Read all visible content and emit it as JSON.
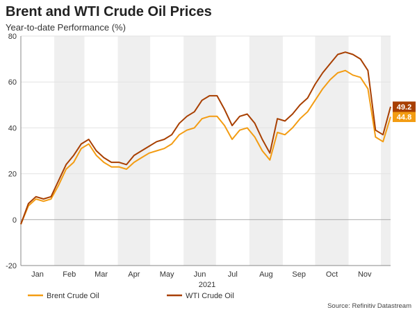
{
  "chart_data": {
    "type": "line",
    "title": "Brent and WTI Crude Oil Prices",
    "subtitle": "Year-to-date Performance (%)",
    "xlabel": "2021",
    "ylabel": "",
    "ylim": [
      -20,
      80
    ],
    "yticks": [
      "-20",
      "0",
      "20",
      "40",
      "60",
      "80"
    ],
    "categories": [
      "Jan",
      "Feb",
      "Mar",
      "Apr",
      "May",
      "Jun",
      "Jul",
      "Aug",
      "Sep",
      "Oct",
      "Nov"
    ],
    "x": [
      "2021-01-01",
      "2021-01-08",
      "2021-01-15",
      "2021-01-22",
      "2021-01-29",
      "2021-02-05",
      "2021-02-12",
      "2021-02-19",
      "2021-02-26",
      "2021-03-05",
      "2021-03-12",
      "2021-03-19",
      "2021-03-26",
      "2021-04-02",
      "2021-04-09",
      "2021-04-16",
      "2021-04-23",
      "2021-04-30",
      "2021-05-07",
      "2021-05-14",
      "2021-05-21",
      "2021-05-28",
      "2021-06-04",
      "2021-06-11",
      "2021-06-18",
      "2021-06-25",
      "2021-07-02",
      "2021-07-09",
      "2021-07-16",
      "2021-07-23",
      "2021-07-30",
      "2021-08-06",
      "2021-08-13",
      "2021-08-20",
      "2021-08-27",
      "2021-09-03",
      "2021-09-10",
      "2021-09-17",
      "2021-09-24",
      "2021-10-01",
      "2021-10-08",
      "2021-10-15",
      "2021-10-22",
      "2021-10-29",
      "2021-11-05",
      "2021-11-12",
      "2021-11-19",
      "2021-11-26",
      "2021-12-03",
      "2021-12-10"
    ],
    "series": [
      {
        "name": "Brent Crude Oil",
        "color": "#f39c12",
        "end_label": "44.8",
        "values": [
          -2,
          6,
          9,
          8,
          9,
          15,
          22,
          25,
          31,
          33,
          28,
          25,
          23,
          23,
          22,
          25,
          27,
          29,
          30,
          31,
          33,
          37,
          39,
          40,
          44,
          45,
          45,
          41,
          35,
          39,
          40,
          36,
          30,
          26,
          38,
          37,
          40,
          44,
          47,
          52,
          57,
          61,
          64,
          65,
          63,
          62,
          57,
          36,
          34,
          44.8
        ]
      },
      {
        "name": "WTI Crude Oil",
        "color": "#a83f00",
        "end_label": "49.2",
        "values": [
          -2,
          7,
          10,
          9,
          10,
          17,
          24,
          28,
          33,
          35,
          30,
          27,
          25,
          25,
          24,
          28,
          30,
          32,
          34,
          35,
          37,
          42,
          45,
          47,
          52,
          54,
          54,
          48,
          41,
          45,
          46,
          42,
          35,
          29,
          44,
          43,
          46,
          50,
          53,
          59,
          64,
          68,
          72,
          73,
          72,
          70,
          65,
          39,
          37,
          49.2
        ]
      }
    ],
    "legend": [
      "Brent Crude Oil",
      "WTI Crude Oil"
    ],
    "legend_position": "bottom-left",
    "grid": true,
    "source": "Source: Refinitiv Datastream"
  }
}
